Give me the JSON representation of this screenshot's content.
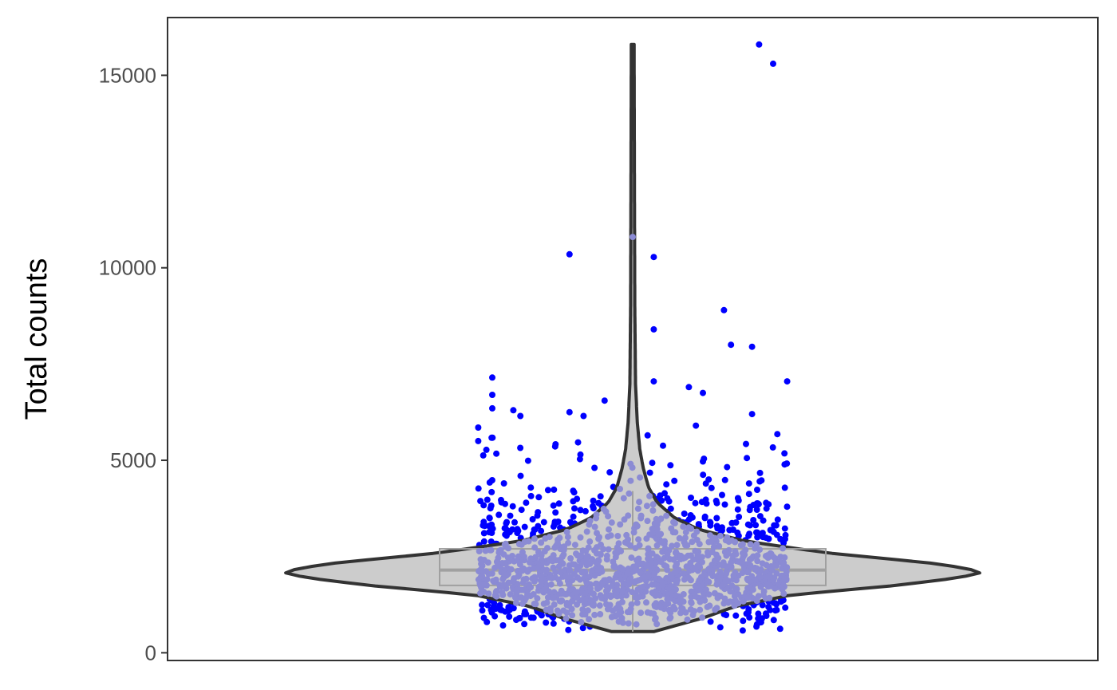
{
  "chart_data": {
    "type": "violin",
    "title": "",
    "xlabel": "",
    "ylabel": "Total counts",
    "ylim": [
      -200,
      16500
    ],
    "yticks": [
      0,
      5000,
      10000,
      15000
    ],
    "ytick_labels": [
      "0",
      "5000",
      "10000",
      "15000"
    ],
    "grid": false,
    "legend": "none",
    "summary": {
      "min": 550,
      "q1": 1750,
      "median": 2150,
      "q3": 2700,
      "max": 15800,
      "whisker_low": 550,
      "whisker_high": 4200
    },
    "violin_profile": [
      {
        "y": 550,
        "w": 0.06
      },
      {
        "y": 700,
        "w": 0.12
      },
      {
        "y": 900,
        "w": 0.2
      },
      {
        "y": 1200,
        "w": 0.29
      },
      {
        "y": 1500,
        "w": 0.45
      },
      {
        "y": 1750,
        "w": 0.75
      },
      {
        "y": 1950,
        "w": 0.93
      },
      {
        "y": 2100,
        "w": 1.0
      },
      {
        "y": 2300,
        "w": 0.88
      },
      {
        "y": 2600,
        "w": 0.55
      },
      {
        "y": 2900,
        "w": 0.32
      },
      {
        "y": 3200,
        "w": 0.19
      },
      {
        "y": 3500,
        "w": 0.12
      },
      {
        "y": 3900,
        "w": 0.07
      },
      {
        "y": 4300,
        "w": 0.045
      },
      {
        "y": 4800,
        "w": 0.03
      },
      {
        "y": 5300,
        "w": 0.02
      },
      {
        "y": 6000,
        "w": 0.013
      },
      {
        "y": 7000,
        "w": 0.008
      },
      {
        "y": 9000,
        "w": 0.006
      },
      {
        "y": 12000,
        "w": 0.005
      },
      {
        "y": 15800,
        "w": 0.004
      }
    ],
    "outliers": [
      {
        "x": 0.18,
        "y": 15800
      },
      {
        "x": 0.2,
        "y": 15300
      },
      {
        "x": -0.09,
        "y": 10350
      },
      {
        "x": 0.03,
        "y": 10280
      },
      {
        "x": 0.0,
        "y": 10800
      },
      {
        "x": 0.03,
        "y": 8400
      },
      {
        "x": 0.13,
        "y": 8900
      },
      {
        "x": 0.14,
        "y": 8000
      },
      {
        "x": 0.17,
        "y": 7950
      },
      {
        "x": 0.22,
        "y": 7050
      },
      {
        "x": 0.03,
        "y": 7050
      },
      {
        "x": 0.08,
        "y": 6900
      },
      {
        "x": 0.1,
        "y": 6750
      },
      {
        "x": -0.2,
        "y": 7150
      },
      {
        "x": -0.2,
        "y": 6700
      },
      {
        "x": -0.2,
        "y": 6350
      },
      {
        "x": -0.17,
        "y": 6300
      },
      {
        "x": -0.16,
        "y": 6150
      },
      {
        "x": -0.09,
        "y": 6250
      },
      {
        "x": -0.07,
        "y": 6150
      },
      {
        "x": -0.04,
        "y": 6550
      },
      {
        "x": 0.17,
        "y": 6200
      },
      {
        "x": 0.09,
        "y": 5900
      },
      {
        "x": -0.22,
        "y": 5850
      },
      {
        "x": -0.22,
        "y": 5500
      }
    ],
    "points_style": {
      "inner_color": "#8b8bd4",
      "outer_color": "#0000ff",
      "n_points": 1400,
      "jitter_half_width": 0.22
    },
    "colors": {
      "violin_fill": "#cccccc",
      "violin_stroke": "#333333",
      "box_stroke": "#a0a0a0",
      "panel_border": "#333333"
    }
  }
}
